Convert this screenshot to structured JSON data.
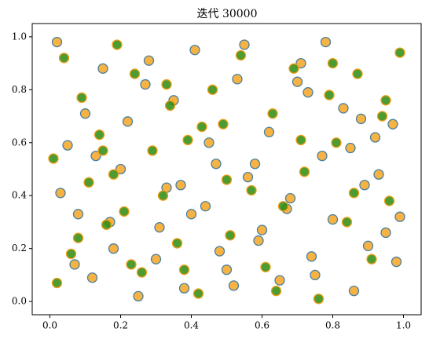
{
  "chart_data": {
    "type": "scatter",
    "title": "迭代 30000",
    "xlim": [
      -0.05,
      1.05
    ],
    "ylim": [
      -0.05,
      1.05
    ],
    "xticks": [
      {
        "value": 0,
        "label": "0.0"
      },
      {
        "value": 0.2,
        "label": "0.2"
      },
      {
        "value": 0.4,
        "label": "0.4"
      },
      {
        "value": 0.6,
        "label": "0.6"
      },
      {
        "value": 0.8,
        "label": "0.8"
      },
      {
        "value": 1,
        "label": "1.0"
      }
    ],
    "yticks": [
      {
        "value": 0,
        "label": "0.0"
      },
      {
        "value": 0.2,
        "label": "0.2"
      },
      {
        "value": 0.4,
        "label": "0.4"
      },
      {
        "value": 0.6,
        "label": "0.6"
      },
      {
        "value": 0.8,
        "label": "0.8"
      },
      {
        "value": 1,
        "label": "1.0"
      }
    ],
    "grid": false,
    "series": [
      {
        "color": "#f5a623",
        "edgecolor": "#4a7fa0",
        "x": [
          0.02,
          0.05,
          0.08,
          0.12,
          0.15,
          0.18,
          0.22,
          0.25,
          0.28,
          0.31,
          0.35,
          0.38,
          0.41,
          0.44,
          0.47,
          0.5,
          0.53,
          0.56,
          0.59,
          0.62,
          0.65,
          0.68,
          0.71,
          0.74,
          0.77,
          0.8,
          0.83,
          0.86,
          0.89,
          0.92,
          0.95,
          0.98,
          0.03,
          0.1,
          0.2,
          0.3,
          0.4,
          0.45,
          0.55,
          0.6,
          0.7,
          0.75,
          0.85,
          0.9,
          0.97,
          0.07,
          0.17,
          0.27,
          0.37,
          0.48,
          0.58,
          0.67,
          0.78,
          0.88,
          0.99,
          0.13,
          0.33,
          0.52,
          0.73,
          0.93
        ],
        "y": [
          0.98,
          0.59,
          0.33,
          0.09,
          0.88,
          0.2,
          0.68,
          0.02,
          0.91,
          0.28,
          0.76,
          0.05,
          0.95,
          0.36,
          0.52,
          0.12,
          0.84,
          0.47,
          0.23,
          0.64,
          0.08,
          0.39,
          0.9,
          0.17,
          0.55,
          0.31,
          0.73,
          0.04,
          0.44,
          0.62,
          0.26,
          0.15,
          0.41,
          0.71,
          0.5,
          0.16,
          0.33,
          0.6,
          0.97,
          0.27,
          0.83,
          0.1,
          0.58,
          0.21,
          0.67,
          0.14,
          0.3,
          0.82,
          0.44,
          0.19,
          0.52,
          0.35,
          0.98,
          0.69,
          0.32,
          0.55,
          0.43,
          0.06,
          0.79,
          0.48
        ]
      },
      {
        "color": "#2e8b0e",
        "edgecolor": "#f39c12",
        "x": [
          0.01,
          0.04,
          0.06,
          0.09,
          0.11,
          0.14,
          0.16,
          0.19,
          0.21,
          0.24,
          0.26,
          0.29,
          0.32,
          0.34,
          0.36,
          0.39,
          0.42,
          0.46,
          0.49,
          0.51,
          0.54,
          0.57,
          0.61,
          0.63,
          0.66,
          0.69,
          0.72,
          0.76,
          0.79,
          0.81,
          0.84,
          0.87,
          0.91,
          0.94,
          0.96,
          0.99,
          0.02,
          0.08,
          0.18,
          0.23,
          0.33,
          0.43,
          0.5,
          0.64,
          0.71,
          0.8,
          0.86,
          0.95,
          0.15,
          0.38
        ],
        "y": [
          0.54,
          0.92,
          0.18,
          0.77,
          0.45,
          0.63,
          0.29,
          0.97,
          0.34,
          0.86,
          0.11,
          0.57,
          0.4,
          0.74,
          0.22,
          0.61,
          0.03,
          0.8,
          0.67,
          0.25,
          0.93,
          0.42,
          0.13,
          0.71,
          0.36,
          0.88,
          0.49,
          0.01,
          0.78,
          0.6,
          0.3,
          0.86,
          0.16,
          0.7,
          0.38,
          0.94,
          0.07,
          0.24,
          0.48,
          0.14,
          0.82,
          0.66,
          0.46,
          0.04,
          0.61,
          0.9,
          0.41,
          0.76,
          0.57,
          0.12
        ]
      }
    ]
  }
}
